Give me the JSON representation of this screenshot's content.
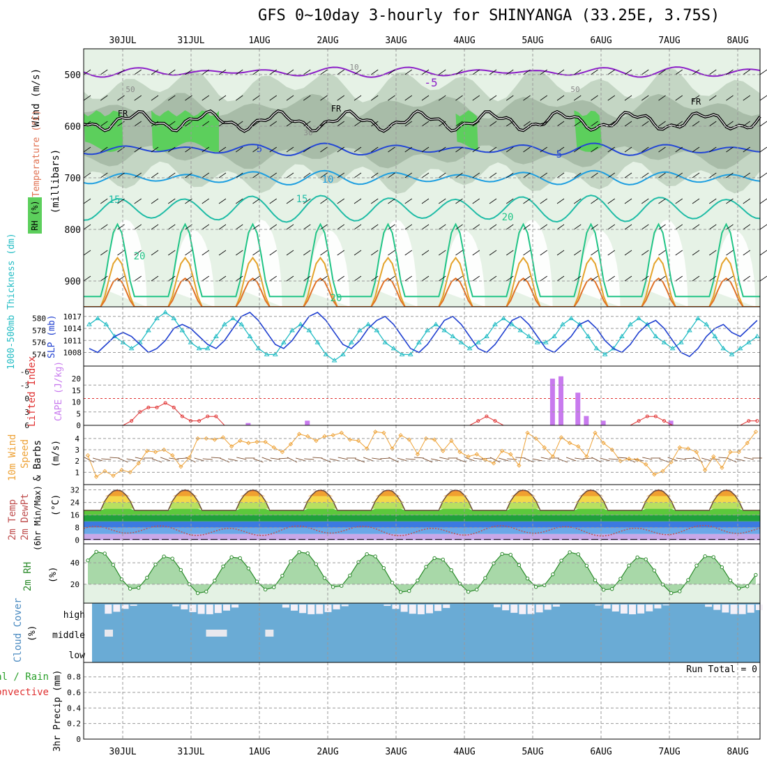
{
  "title": "GFS 0~10day 3-hourly for SHINYANGA (33.25E, 3.75S)",
  "dates": [
    "30JUL",
    "31JUL",
    "1AUG",
    "2AUG",
    "3AUG",
    "4AUG",
    "5AUG",
    "6AUG",
    "7AUG",
    "8AUG"
  ],
  "colors": {
    "rh_light": "#e6f2e6",
    "rh_mid": "#c4d6c4",
    "rh_dark": "#a8bca8",
    "rh_green": "#5ccf5c",
    "rh_bright": "#1fc41f",
    "temp_neg": "#8c1fc8",
    "temp_5": "#2346d6",
    "temp_10": "#1c9ee0",
    "temp_15": "#1fbca6",
    "temp_20": "#21c486",
    "temp_25": "#e4a32a",
    "temp_30": "#e07024",
    "temp_35": "#e02480",
    "freezing": "#000000",
    "slp": "#1f3fd0",
    "thickness": "#22bcc4",
    "lifted": "#e03030",
    "cape": "#c87aee",
    "wind": "#eea236",
    "barb": "#7a4a2a",
    "temp2m": "#6a4a3a",
    "dew2m": "#c05050",
    "rh2m": "#2a8a2a",
    "cloud": "#6aabd5",
    "cloud_gap": "#f4f0f8"
  },
  "panels": {
    "upper": {
      "label_rh": "RH (%)",
      "label_temp": "Temperature (°C)",
      "label_wind": "Wind (m/s)",
      "label_mb": "(millibars)",
      "y_ticks": [
        "500",
        "600",
        "700",
        "800",
        "900"
      ],
      "contour_labels": [
        "-5",
        "5",
        "5",
        "10",
        "15",
        "15",
        "20",
        "20",
        "30",
        "50",
        "50",
        "10",
        "FR",
        "FR",
        "FR",
        "20"
      ]
    },
    "slp": {
      "label_thick": "1000-500mb Thickness (dm)",
      "label_slp": "SLP (mb)",
      "left_ticks": [
        "580",
        "578",
        "576",
        "574"
      ],
      "right_ticks": [
        "1017",
        "1014",
        "1011",
        "1008"
      ]
    },
    "cape": {
      "label_li": "Lifted Index",
      "label_cape": "CAPE (J/kg)",
      "left_ticks": [
        "-6",
        "-3",
        "0",
        "3",
        "6"
      ],
      "right_ticks": [
        "20",
        "15",
        "10",
        "5",
        "0"
      ]
    },
    "wind10": {
      "label1": "10m Wind",
      "label2": "Speed",
      "label3": "& Barbs",
      "unit": "(m/s)",
      "ticks": [
        "4",
        "3",
        "2",
        "1"
      ]
    },
    "temp2m": {
      "label1": "2m Temp",
      "label2": "2m DewPt",
      "label3": "(6hr Min/Max)",
      "unit": "(°C)",
      "ticks": [
        "32",
        "24",
        "16",
        "8",
        "0"
      ]
    },
    "rh2m": {
      "label": "2m RH",
      "unit": "(%)",
      "ticks": [
        "40",
        "20"
      ]
    },
    "cloud": {
      "label": "Cloud Cover",
      "unit": "(%)",
      "levels": [
        "high",
        "middle",
        "low"
      ]
    },
    "precip": {
      "label1": "3hr Precip (mm)",
      "label2": "Total / Rain",
      "label3": "Convective",
      "run_total": "Run Total = 0",
      "ticks": [
        "0.8",
        "0.6",
        "0.4",
        "0.2",
        "0"
      ]
    }
  },
  "chart_data": {
    "type": "line",
    "x": [
      0,
      3,
      6,
      9,
      12,
      15,
      18,
      21,
      24,
      27,
      30,
      33,
      36,
      39,
      42,
      45,
      48,
      51,
      54,
      57,
      60,
      63,
      66,
      69,
      72,
      75,
      78,
      81,
      84,
      87,
      90,
      93,
      96,
      99,
      102,
      105,
      108,
      111,
      114,
      117,
      120,
      123,
      126,
      129,
      132,
      135,
      138,
      141,
      144,
      147,
      150,
      153,
      156,
      159,
      162,
      165,
      168,
      171,
      174,
      177,
      180,
      183,
      186,
      189,
      192,
      195,
      198,
      201,
      204,
      207,
      210,
      213,
      216,
      219,
      222,
      225,
      228,
      231,
      234,
      237
    ],
    "series": [
      {
        "name": "SLP (mb)",
        "values": [
          1009,
          1008,
          1010,
          1012,
          1013,
          1012,
          1010,
          1008,
          1009,
          1011,
          1014,
          1015,
          1014,
          1012,
          1010,
          1009,
          1011,
          1014,
          1017,
          1018,
          1016,
          1013,
          1010,
          1009,
          1011,
          1014,
          1017,
          1018,
          1016,
          1013,
          1010,
          1009,
          1011,
          1014,
          1016,
          1017,
          1015,
          1012,
          1009,
          1008,
          1010,
          1013,
          1016,
          1017,
          1015,
          1012,
          1009,
          1008,
          1010,
          1013,
          1016,
          1017,
          1015,
          1012,
          1009,
          1008,
          1010,
          1012,
          1015,
          1016,
          1014,
          1011,
          1009,
          1008,
          1010,
          1013,
          1015,
          1016,
          1014,
          1011,
          1008,
          1007,
          1009,
          1012,
          1014,
          1015,
          1013,
          1012,
          1014,
          1016
        ]
      },
      {
        "name": "Thickness (dm)",
        "values": [
          579,
          580,
          579,
          577,
          576,
          575,
          576,
          578,
          580,
          581,
          580,
          578,
          576,
          575,
          575,
          577,
          579,
          580,
          579,
          577,
          575,
          574,
          574,
          576,
          578,
          579,
          578,
          576,
          574,
          573,
          574,
          576,
          578,
          579,
          578,
          576,
          575,
          574,
          574,
          576,
          578,
          579,
          578,
          577,
          576,
          575,
          576,
          577,
          579,
          580,
          579,
          578,
          577,
          576,
          576,
          577,
          579,
          580,
          579,
          577,
          575,
          574,
          575,
          577,
          579,
          580,
          579,
          577,
          576,
          575,
          576,
          578,
          580,
          579,
          577,
          575,
          574,
          575,
          576,
          577
        ]
      },
      {
        "name": "Lifted Index",
        "values": [
          6,
          6,
          6,
          6,
          6,
          5,
          3,
          2,
          2,
          1,
          2,
          4,
          5,
          5,
          4,
          4,
          6,
          6,
          6,
          6,
          6,
          6,
          6,
          6,
          6,
          6,
          6,
          6,
          6,
          6,
          6,
          6,
          6,
          6,
          6,
          6,
          6,
          6,
          6,
          6,
          6,
          6,
          6,
          6,
          6,
          6,
          5,
          4,
          5,
          6,
          6,
          6,
          6,
          6,
          6,
          6,
          6,
          6,
          6,
          6,
          6,
          6,
          6,
          6,
          6,
          5,
          4,
          4,
          5,
          6,
          6,
          6,
          6,
          6,
          6,
          6,
          6,
          6,
          5,
          5
        ]
      },
      {
        "name": "10m Wind Speed",
        "values": [
          2.5,
          0.6,
          1.1,
          0.7,
          1.2,
          1.0,
          1.8,
          2.9,
          2.8,
          3.0,
          2.5,
          1.5,
          2.3,
          4.0,
          4.0,
          3.9,
          4.1,
          3.3,
          3.8,
          3.6,
          3.7,
          3.7,
          3.2,
          2.8,
          3.5,
          4.4,
          4.2,
          3.8,
          4.2,
          4.3,
          4.5,
          3.9,
          3.8,
          3.1,
          4.6,
          4.5,
          3.1,
          4.3,
          3.9,
          2.6,
          4.0,
          3.9,
          2.9,
          3.8,
          2.8,
          2.4,
          2.6,
          2.1,
          1.8,
          2.9,
          2.6,
          1.6,
          4.5,
          4.0,
          3.2,
          2.4,
          4.1,
          3.6,
          3.3,
          2.4,
          4.5,
          3.6,
          3.0,
          2.0,
          2.2,
          2.1,
          1.7,
          0.8,
          1.1,
          1.9,
          3.2,
          3.1,
          2.8,
          1.2,
          2.4,
          1.4,
          2.8,
          2.8,
          3.6,
          4.6
        ]
      }
    ],
    "xlabel": "",
    "ylabel": "",
    "grid": true
  }
}
